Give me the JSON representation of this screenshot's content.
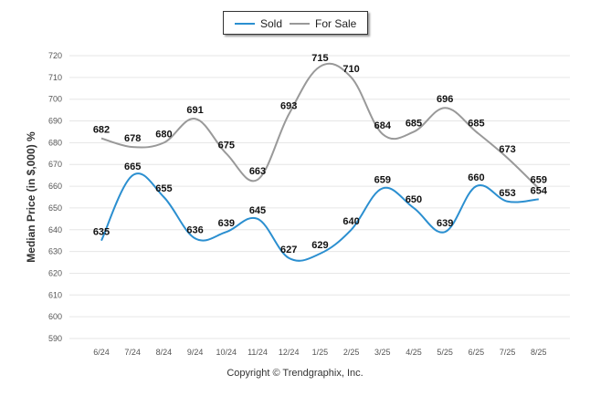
{
  "chart_data": {
    "type": "line",
    "title": "",
    "xlabel": "",
    "ylabel": "Median Price (in $,000) %",
    "ylim": [
      590,
      720
    ],
    "yticks": [
      590,
      600,
      610,
      620,
      630,
      640,
      650,
      660,
      670,
      680,
      690,
      700,
      710,
      720
    ],
    "categories": [
      "6/24",
      "7/24",
      "8/24",
      "9/24",
      "10/24",
      "11/24",
      "12/24",
      "1/25",
      "2/25",
      "3/25",
      "4/25",
      "5/25",
      "6/25",
      "7/25",
      "8/25"
    ],
    "grid": true,
    "legend_position": "top-center",
    "series": [
      {
        "name": "Sold",
        "color": "#2b8fd0",
        "values": [
          635,
          665,
          655,
          636,
          639,
          645,
          627,
          629,
          640,
          659,
          650,
          639,
          660,
          653,
          654
        ]
      },
      {
        "name": "For Sale",
        "color": "#999999",
        "values": [
          682,
          678,
          680,
          691,
          675,
          663,
          693,
          715,
          710,
          684,
          685,
          696,
          685,
          673,
          659
        ]
      }
    ]
  },
  "footer": {
    "copyright": "Copyright © Trendgraphix, Inc."
  }
}
